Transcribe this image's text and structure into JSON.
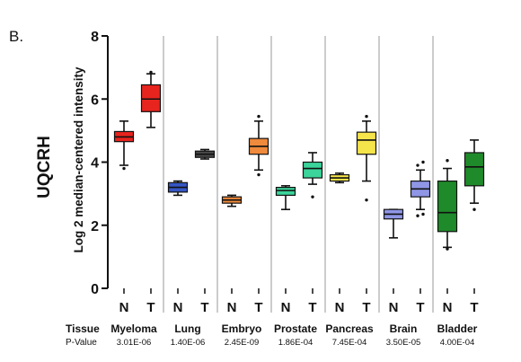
{
  "chart_data": {
    "type": "box",
    "panel_label": "B.",
    "gene": "UQCRH",
    "ylabel": "Log 2 median-centered intensity",
    "ylim": [
      0,
      8
    ],
    "yticks": [
      0,
      2,
      4,
      6,
      8
    ],
    "row_labels": {
      "tissue": "Tissue",
      "pvalue": "P-Value"
    },
    "tissues": [
      {
        "name": "Myeloma",
        "pvalue": "3.01E-06",
        "boxes": [
          {
            "label": "N",
            "color": "#e8241e",
            "whisker": [
              3.9,
              5.3
            ],
            "q1": 4.65,
            "median": 4.8,
            "q3": 4.97,
            "outliers": [
              3.8
            ]
          },
          {
            "label": "T",
            "color": "#e8241e",
            "whisker": [
              5.1,
              6.8
            ],
            "q1": 5.6,
            "median": 6.0,
            "q3": 6.45,
            "outliers": [
              6.85
            ]
          }
        ]
      },
      {
        "name": "Lung",
        "pvalue": "1.40E-06",
        "boxes": [
          {
            "label": "N",
            "color": "#3556c4",
            "whisker": [
              2.95,
              3.4
            ],
            "q1": 3.05,
            "median": 3.2,
            "q3": 3.35,
            "outliers": []
          },
          {
            "label": "T",
            "color": "#4a4a4a",
            "whisker": [
              4.1,
              4.4
            ],
            "q1": 4.15,
            "median": 4.25,
            "q3": 4.35,
            "outliers": []
          }
        ]
      },
      {
        "name": "Embryo",
        "pvalue": "2.45E-09",
        "boxes": [
          {
            "label": "N",
            "color": "#f08a3c",
            "whisker": [
              2.6,
              2.95
            ],
            "q1": 2.7,
            "median": 2.8,
            "q3": 2.9,
            "outliers": []
          },
          {
            "label": "T",
            "color": "#f08a3c",
            "whisker": [
              3.75,
              5.3
            ],
            "q1": 4.25,
            "median": 4.5,
            "q3": 4.75,
            "outliers": [
              3.6,
              5.45
            ]
          }
        ]
      },
      {
        "name": "Prostate",
        "pvalue": "1.86E-04",
        "boxes": [
          {
            "label": "N",
            "color": "#3bd49a",
            "whisker": [
              2.5,
              3.25
            ],
            "q1": 2.95,
            "median": 3.1,
            "q3": 3.2,
            "outliers": []
          },
          {
            "label": "T",
            "color": "#3bd49a",
            "whisker": [
              3.3,
              4.3
            ],
            "q1": 3.5,
            "median": 3.8,
            "q3": 4.0,
            "outliers": [
              2.9
            ]
          }
        ]
      },
      {
        "name": "Pancreas",
        "pvalue": "7.45E-04",
        "boxes": [
          {
            "label": "N",
            "color": "#f5e44a",
            "whisker": [
              3.35,
              3.65
            ],
            "q1": 3.4,
            "median": 3.5,
            "q3": 3.6,
            "outliers": []
          },
          {
            "label": "T",
            "color": "#f5e44a",
            "whisker": [
              3.4,
              5.3
            ],
            "q1": 4.25,
            "median": 4.7,
            "q3": 4.95,
            "outliers": [
              2.8,
              5.45
            ]
          }
        ]
      },
      {
        "name": "Brain",
        "pvalue": "3.50E-05",
        "boxes": [
          {
            "label": "N",
            "color": "#8f96e6",
            "whisker": [
              1.6,
              2.5
            ],
            "q1": 2.2,
            "median": 2.35,
            "q3": 2.5,
            "outliers": []
          },
          {
            "label": "T",
            "color": "#8f96e6",
            "whisker": [
              2.5,
              3.75
            ],
            "q1": 2.9,
            "median": 3.15,
            "q3": 3.4,
            "outliers": [
              2.3,
              2.35,
              3.9,
              4.0
            ]
          }
        ]
      },
      {
        "name": "Bladder",
        "pvalue": "4.00E-04",
        "boxes": [
          {
            "label": "N",
            "color": "#1f8a2a",
            "whisker": [
              1.3,
              3.8
            ],
            "q1": 1.8,
            "median": 2.4,
            "q3": 3.4,
            "outliers": [
              1.25,
              4.05
            ]
          },
          {
            "label": "T",
            "color": "#1f8a2a",
            "whisker": [
              2.7,
              4.7
            ],
            "q1": 3.25,
            "median": 3.85,
            "q3": 4.3,
            "outliers": [
              2.5
            ]
          }
        ]
      }
    ]
  }
}
